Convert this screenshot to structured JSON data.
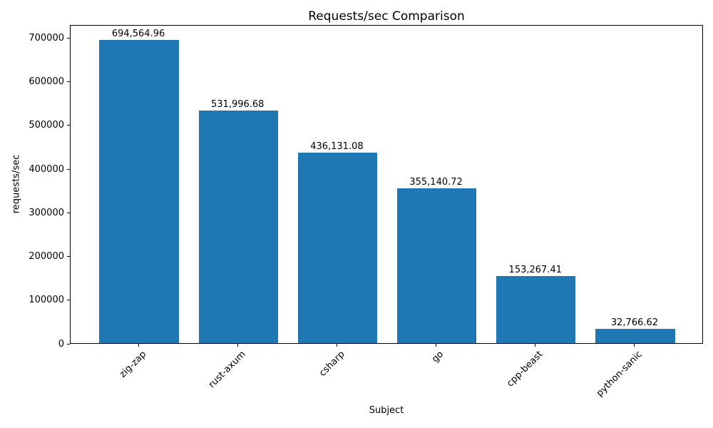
{
  "chart_data": {
    "type": "bar",
    "title": "Requests/sec Comparison",
    "xlabel": "Subject",
    "ylabel": "requests/sec",
    "categories": [
      "zig-zap",
      "rust-axum",
      "csharp",
      "go",
      "cpp-beast",
      "python-sanic"
    ],
    "values": [
      694564.96,
      531996.68,
      436131.08,
      355140.72,
      153267.41,
      32766.62
    ],
    "value_labels": [
      "694,564.96",
      "531,996.68",
      "436,131.08",
      "355,140.72",
      "153,267.41",
      "32,766.62"
    ],
    "bar_color": "#1f77b4",
    "axis_color": "#000000",
    "background_color": "#ffffff",
    "ylim": [
      0,
      730000
    ],
    "yticks": [
      0,
      100000,
      200000,
      300000,
      400000,
      500000,
      600000,
      700000
    ],
    "ytick_labels": [
      "0",
      "100000",
      "200000",
      "300000",
      "400000",
      "500000",
      "600000",
      "700000"
    ],
    "xtick_rotation": 45,
    "bar_rel_width": 0.8,
    "grid": false,
    "legend": null
  }
}
